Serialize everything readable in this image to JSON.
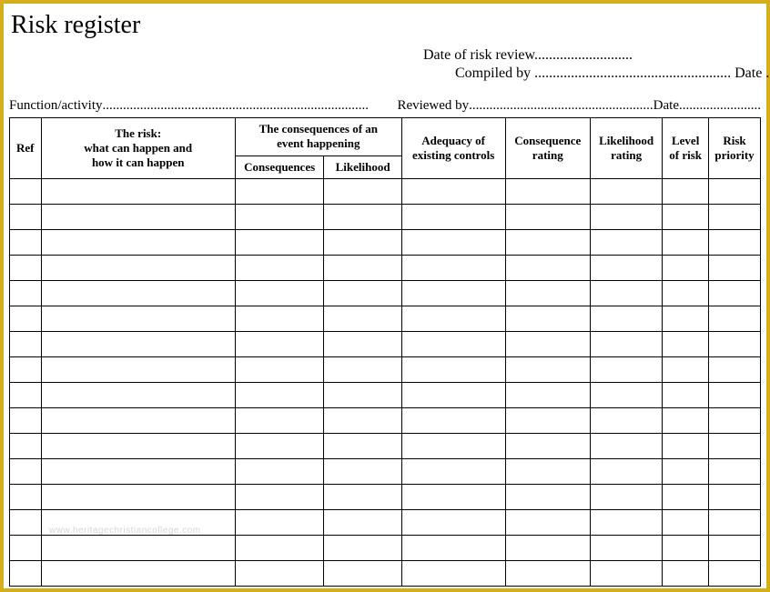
{
  "title": "Risk register",
  "meta": {
    "date_review_label": "Date of risk review",
    "date_review_dots": "...........................",
    "compiled_label": "Compiled by",
    "compiled_dots": "......................................................",
    "compiled_date_label": "Date",
    "compiled_date_dots": "........................",
    "reviewed_label": "Reviewed by",
    "reviewed_dots": "......................................................",
    "reviewed_date_label": "Date",
    "reviewed_date_dots": "........................"
  },
  "function_label": "Function/activity",
  "function_dots": "..............................................................................",
  "headers": {
    "ref": "Ref",
    "risk": "The risk:\nwhat can happen and\nhow it can happen",
    "consequences_group": "The consequences of an\nevent happening",
    "consequences": "Consequences",
    "likelihood": "Likelihood",
    "adequacy": "Adequacy of\nexisting controls",
    "consequence_rating": "Consequence\nrating",
    "likelihood_rating": "Likelihood\nrating",
    "level": "Level\nof risk",
    "priority": "Risk\npriority"
  },
  "row_count": 16,
  "watermark": "www.heritagechristiancollege.com",
  "colors": {
    "border_outer": "#d4af1a",
    "border_table": "#000000",
    "background": "#ffffff",
    "watermark": "#d5d5d5"
  }
}
